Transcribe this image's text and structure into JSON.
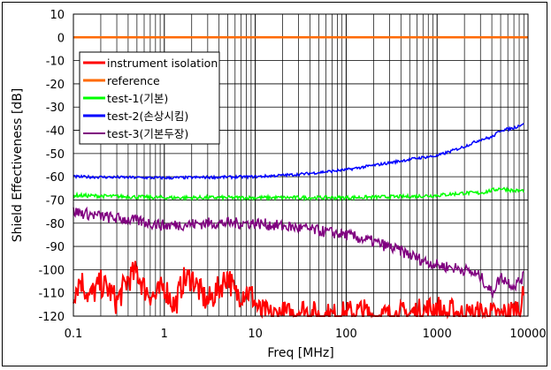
{
  "chart_data": {
    "type": "line",
    "title": "",
    "xlabel": "Freq [MHz]",
    "ylabel": "Shield Effectiveness [dB]",
    "xscale": "log",
    "xlim": [
      0.1,
      10000
    ],
    "ylim": [
      -120,
      10
    ],
    "xticks": [
      "0.1",
      "1",
      "10",
      "100",
      "1000",
      "10000"
    ],
    "yticks": [
      "10",
      "0",
      "-10",
      "-20",
      "-30",
      "-40",
      "-50",
      "-60",
      "-70",
      "-80",
      "-90",
      "-100",
      "-110",
      "-120"
    ],
    "grid": true,
    "legend_position": "top-left",
    "series": [
      {
        "name": "instrument isolation",
        "color": "#ff0000",
        "x": [
          0.1,
          0.12,
          0.15,
          0.2,
          0.25,
          0.3,
          0.4,
          0.5,
          0.6,
          0.8,
          1,
          1.3,
          1.6,
          2,
          2.5,
          3,
          4,
          5,
          6,
          8,
          9.5,
          11,
          15,
          20,
          25,
          30,
          50,
          80,
          100,
          150,
          200,
          300,
          500,
          700,
          1000,
          1200,
          1500,
          2000,
          3000,
          5000,
          7000,
          8000,
          9000
        ],
        "y": [
          -110,
          -104,
          -112,
          -106,
          -109,
          -114,
          -104,
          -101,
          -108,
          -112,
          -107,
          -116,
          -105,
          -103,
          -110,
          -114,
          -108,
          -102,
          -111,
          -109,
          -112,
          -118,
          -120,
          -119,
          -120,
          -117,
          -120,
          -120,
          -119,
          -118,
          -120,
          -120,
          -119,
          -118,
          -116,
          -120,
          -118,
          -120,
          -119,
          -120,
          -118,
          -116,
          -112
        ]
      },
      {
        "name": "reference",
        "color": "#ff6a00",
        "x": [
          0.1,
          10000
        ],
        "y": [
          0,
          0
        ]
      },
      {
        "name": "test-1(기본)",
        "color": "#00ff00",
        "x": [
          0.1,
          1,
          10,
          100,
          500,
          1000,
          2000,
          3000,
          5000,
          7000,
          9000
        ],
        "y": [
          -68,
          -69,
          -69,
          -69,
          -68.5,
          -68,
          -67,
          -67,
          -65,
          -66,
          -66
        ]
      },
      {
        "name": "test-2(손상시킴)",
        "color": "#0000ff",
        "x": [
          0.1,
          1,
          10,
          30,
          100,
          300,
          600,
          1000,
          2000,
          3000,
          4000,
          5000,
          7000,
          9000
        ],
        "y": [
          -60,
          -60.5,
          -60,
          -59,
          -57,
          -54,
          -52,
          -51,
          -47,
          -44,
          -43,
          -40,
          -39,
          -37
        ]
      },
      {
        "name": "test-3(기본두장)",
        "color": "#800080",
        "x": [
          0.1,
          0.2,
          0.5,
          1,
          3,
          10,
          30,
          100,
          200,
          400,
          700,
          1000,
          2000,
          3000,
          4000,
          5000,
          7000,
          9000
        ],
        "y": [
          -75,
          -77,
          -79,
          -81,
          -80,
          -80,
          -82,
          -85,
          -88,
          -92,
          -96,
          -98,
          -100,
          -103,
          -110,
          -103,
          -107,
          -103
        ]
      }
    ]
  }
}
